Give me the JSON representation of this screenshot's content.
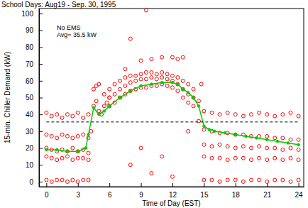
{
  "chart_data": {
    "type": "scatter",
    "title": "School Days: Aug19 - Sep. 30, 1995",
    "annotations": [
      "No EMS",
      "Avg= 35.5 kW"
    ],
    "x_label": "Time of Day (EST)",
    "y_label": "15-min. Chiller Demand (kW)",
    "xlim": [
      -0.7,
      24.5
    ],
    "ylim": [
      -3,
      103
    ],
    "xticks": [
      0,
      3,
      6,
      9,
      12,
      15,
      18,
      21,
      24
    ],
    "yticks": [
      0,
      10,
      20,
      30,
      40,
      50,
      60,
      70,
      80,
      90,
      100
    ],
    "series": [
      {
        "type": "scatter",
        "color": "#ff0000",
        "marker": "circle",
        "x": [
          0,
          0.5,
          1,
          1.5,
          2,
          2.5,
          3,
          3.5,
          4,
          0,
          0.5,
          1,
          1.5,
          2,
          2.5,
          3,
          3.5,
          4,
          0,
          0.5,
          1,
          1.5,
          2,
          2.5,
          3,
          3.5,
          4,
          0,
          0.5,
          1,
          1.5,
          2,
          2.5,
          3,
          3.5,
          4,
          0,
          0.5,
          1,
          1.5,
          2,
          2.5,
          3,
          3.5,
          4,
          4.25,
          4.5,
          4.5,
          4.75,
          4.75,
          5,
          5,
          5.25,
          5.5,
          5.5,
          5.75,
          6,
          6,
          6.5,
          7,
          7.5,
          8,
          8.5,
          9,
          9.5,
          10,
          10.5,
          11,
          11.5,
          12,
          12.5,
          13,
          13.5,
          14,
          6,
          6.5,
          7,
          7.5,
          8,
          8.5,
          9,
          9.5,
          10,
          10.5,
          11,
          11.5,
          12,
          12.5,
          13,
          13.5,
          14,
          6,
          6.5,
          7,
          7.5,
          8,
          8.5,
          9,
          9.5,
          10,
          10.5,
          11,
          11.5,
          12,
          12.5,
          13,
          13.5,
          14,
          7.5,
          8,
          9.5,
          9,
          10,
          11,
          12,
          12.5,
          13,
          8,
          9,
          10,
          12,
          11,
          13.5,
          14.5,
          14.5,
          14.75,
          15,
          15.75,
          16.5,
          17.25,
          18,
          18.75,
          19.5,
          20.25,
          21,
          21.75,
          22.5,
          23.25,
          24,
          15,
          15.75,
          16.5,
          17.25,
          18,
          18.75,
          19.5,
          20.25,
          21,
          21.75,
          22.5,
          23.25,
          24,
          15,
          15.75,
          16.5,
          17.25,
          18,
          18.75,
          19.5,
          20.25,
          21,
          21.75,
          22.5,
          23.25,
          24,
          15,
          15.75,
          16.5,
          17.25,
          18,
          18.75,
          19.5,
          20.25,
          21,
          21.75,
          22.5,
          23.25,
          24,
          15,
          15.75,
          16.5,
          17.25,
          18,
          18.75,
          19.5,
          20.25,
          21,
          21.75,
          22.5,
          23.25,
          24
        ],
        "values": [
          41,
          39,
          40,
          38,
          40,
          39,
          41,
          38,
          40,
          28,
          27,
          26,
          28,
          27,
          26,
          27,
          28,
          26,
          20,
          19,
          18,
          19,
          18,
          20,
          18,
          19,
          17,
          15,
          14,
          13,
          14,
          15,
          13,
          14,
          14,
          13,
          1,
          0,
          1,
          1,
          0,
          1,
          0,
          1,
          1,
          30,
          45,
          55,
          48,
          57,
          42,
          58,
          40,
          45,
          52,
          47,
          50,
          55,
          58,
          60,
          62,
          63,
          63,
          64,
          65,
          65,
          64,
          65,
          64,
          63,
          62,
          60,
          58,
          55,
          45,
          47,
          50,
          52,
          54,
          55,
          56,
          56,
          57,
          57,
          58,
          57,
          56,
          54,
          50,
          47,
          45,
          50,
          52,
          55,
          57,
          59,
          60,
          61,
          61,
          62,
          61,
          62,
          61,
          60,
          58,
          55,
          52,
          50,
          67,
          85,
          102,
          72,
          73,
          74,
          74,
          73,
          74,
          10,
          20,
          5,
          3,
          15,
          30,
          48,
          36,
          58,
          42,
          41,
          40,
          41,
          40,
          39,
          40,
          41,
          40,
          39,
          40,
          41,
          39,
          31,
          30,
          29,
          29,
          28,
          28,
          27,
          27,
          27,
          26,
          26,
          25,
          25,
          22,
          21,
          22,
          21,
          20,
          21,
          20,
          21,
          20,
          20,
          19,
          20,
          19,
          15,
          14,
          14,
          13,
          14,
          14,
          13,
          14,
          13,
          14,
          13,
          14,
          13,
          1,
          1,
          0,
          1,
          1,
          0,
          1,
          1,
          0,
          1,
          1,
          0,
          1
        ]
      },
      {
        "type": "line",
        "color": "#00cc00",
        "marker": "circle",
        "x": [
          0,
          1,
          2,
          3,
          3.75,
          4,
          4.5,
          5,
          5.5,
          6,
          7,
          8,
          9,
          10,
          11,
          12,
          12.5,
          13,
          13.5,
          14,
          14.5,
          15,
          15.5,
          16,
          17,
          18,
          19,
          20,
          21,
          22,
          23,
          24
        ],
        "values": [
          19,
          19,
          18,
          18,
          20,
          28,
          44,
          40,
          42,
          45,
          50,
          54,
          57,
          58,
          59,
          59,
          58,
          55,
          53,
          50,
          45,
          33,
          31,
          30,
          29,
          28,
          27,
          26,
          25,
          24,
          23,
          22
        ]
      },
      {
        "type": "line",
        "color": "#000000",
        "line_style": "dashed",
        "x": [
          0,
          24
        ],
        "values": [
          35.5,
          35.5
        ]
      }
    ]
  }
}
